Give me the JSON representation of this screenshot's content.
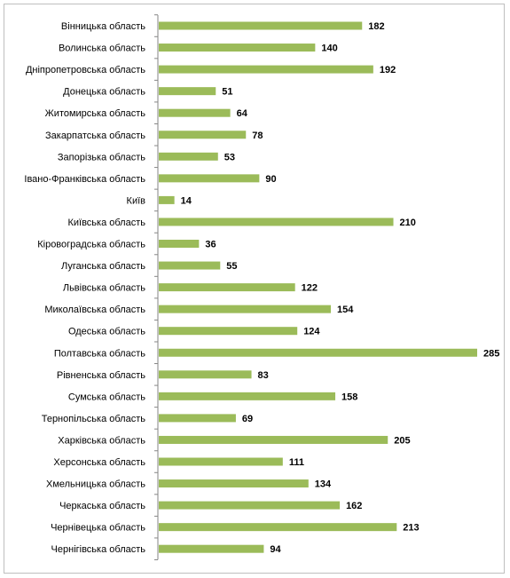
{
  "chart_data": {
    "type": "bar",
    "orientation": "horizontal",
    "categories": [
      "Вінницька область",
      "Волинська область",
      "Дніпропетровська область",
      "Донецька область",
      "Житомирська область",
      "Закарпатська область",
      "Запорізька область",
      "Івано-Франківська область",
      "Київ",
      "Київська область",
      "Кіровоградська область",
      "Луганська область",
      "Львівська область",
      "Миколаївська область",
      "Одеська область",
      "Полтавська область",
      "Рівненська область",
      "Сумська область",
      "Тернопільська область",
      "Харківська область",
      "Херсонська область",
      "Хмельницька область",
      "Черкаська область",
      "Чернівецька область",
      "Чернігівська область"
    ],
    "values": [
      182,
      140,
      192,
      51,
      64,
      78,
      53,
      90,
      14,
      210,
      36,
      55,
      122,
      154,
      124,
      285,
      83,
      158,
      69,
      205,
      111,
      134,
      162,
      213,
      94
    ],
    "xlim": [
      0,
      285
    ],
    "grid": false,
    "legend": "none",
    "bar_color": "#9bbb59",
    "data_labels": true
  }
}
